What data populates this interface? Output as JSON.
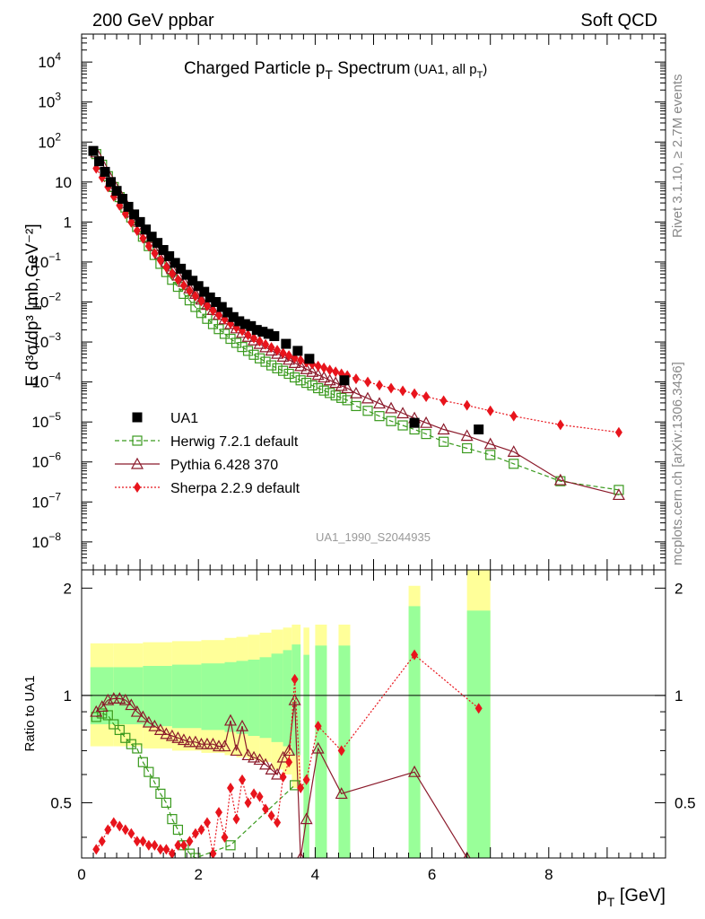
{
  "header": {
    "left": "200 GeV ppbar",
    "right": "Soft QCD"
  },
  "side_labels": {
    "rivet": "Rivet 3.1.10, ≥ 2.7M events",
    "mcplots": "mcplots.cern.ch [arXiv:1306.3436]"
  },
  "chart_data": [
    {
      "type": "scatter",
      "panel": "main",
      "title": "Charged Particle p_T Spectrum",
      "subtitle": "(UA1, all p_T)",
      "watermark": "UA1_1990_S2044935",
      "ylabel": "E d³σ/dp³ [mb,GeV⁻²]",
      "yscale": "log",
      "xlim": [
        0,
        10
      ],
      "ylim": [
        2e-09,
        50000
      ],
      "y_ticks": [
        "10^-8",
        "10^-7",
        "10^-6",
        "10^-5",
        "10^-4",
        "10^-3",
        "10^-2",
        "10^-1",
        "1",
        "10",
        "10^2",
        "10^3",
        "10^4"
      ],
      "legend_position": "lower-left",
      "series": [
        {
          "name": "UA1",
          "color": "#000000",
          "marker": "square-filled",
          "line": "none",
          "x": [
            0.2,
            0.3,
            0.4,
            0.5,
            0.6,
            0.7,
            0.8,
            0.9,
            1.0,
            1.1,
            1.2,
            1.3,
            1.4,
            1.5,
            1.6,
            1.7,
            1.8,
            1.9,
            2.0,
            2.1,
            2.2,
            2.3,
            2.4,
            2.5,
            2.6,
            2.7,
            2.8,
            2.9,
            3.0,
            3.1,
            3.2,
            3.3,
            3.5,
            3.7,
            3.9,
            4.5,
            5.7,
            6.8
          ],
          "y": [
            60,
            33,
            18,
            10,
            6,
            3.8,
            2.4,
            1.55,
            1.0,
            0.65,
            0.43,
            0.3,
            0.2,
            0.14,
            0.095,
            0.068,
            0.048,
            0.034,
            0.025,
            0.018,
            0.013,
            0.01,
            0.0075,
            0.0055,
            0.0042,
            0.0033,
            0.0028,
            0.0025,
            0.002,
            0.0018,
            0.0016,
            0.0014,
            0.0009,
            0.0006,
            0.00038,
            0.00011,
            9.5e-06,
            6.5e-06
          ]
        },
        {
          "name": "Herwig 7.2.1 default",
          "color": "#3a9a1e",
          "marker": "square-open",
          "line": "dashed",
          "x": [
            0.25,
            0.35,
            0.45,
            0.55,
            0.65,
            0.75,
            0.85,
            0.95,
            1.05,
            1.15,
            1.25,
            1.35,
            1.45,
            1.55,
            1.65,
            1.75,
            1.85,
            1.95,
            2.05,
            2.15,
            2.25,
            2.35,
            2.45,
            2.55,
            2.65,
            2.75,
            2.85,
            2.95,
            3.05,
            3.15,
            3.25,
            3.35,
            3.45,
            3.55,
            3.65,
            3.75,
            3.85,
            3.95,
            4.05,
            4.15,
            4.25,
            4.35,
            4.45,
            4.55,
            4.7,
            4.9,
            5.1,
            5.3,
            5.5,
            5.7,
            5.9,
            6.2,
            6.6,
            7.0,
            7.4,
            8.2,
            9.2
          ],
          "y": [
            50,
            27,
            14,
            7.5,
            4.2,
            2.3,
            1.3,
            0.75,
            0.43,
            0.25,
            0.15,
            0.09,
            0.056,
            0.036,
            0.024,
            0.016,
            0.011,
            0.0075,
            0.0053,
            0.0038,
            0.0028,
            0.0021,
            0.0016,
            0.0012,
            0.00095,
            0.00075,
            0.0006,
            0.00048,
            0.00039,
            0.00032,
            0.00026,
            0.00022,
            0.00019,
            0.00016,
            0.00013,
            0.00011,
            9.5e-05,
            8.2e-05,
            7e-05,
            6.1e-05,
            5.3e-05,
            4.6e-05,
            4e-05,
            3.5e-05,
            2.5e-05,
            1.9e-05,
            1.4e-05,
            1.05e-05,
            8.2e-06,
            6.5e-06,
            5e-06,
            3.2e-06,
            2.2e-06,
            1.5e-06,
            9e-07,
            3.3e-07,
            2e-07
          ]
        },
        {
          "name": "Pythia 6.428 370",
          "color": "#8b1a2b",
          "marker": "triangle-open",
          "line": "solid",
          "x": [
            0.25,
            0.35,
            0.45,
            0.55,
            0.65,
            0.75,
            0.85,
            0.95,
            1.05,
            1.15,
            1.25,
            1.35,
            1.45,
            1.55,
            1.65,
            1.75,
            1.85,
            1.95,
            2.05,
            2.15,
            2.25,
            2.35,
            2.45,
            2.55,
            2.65,
            2.75,
            2.85,
            2.95,
            3.05,
            3.15,
            3.25,
            3.35,
            3.45,
            3.55,
            3.65,
            3.75,
            3.85,
            3.95,
            4.05,
            4.15,
            4.25,
            4.35,
            4.45,
            4.55,
            4.7,
            4.9,
            5.1,
            5.3,
            5.5,
            5.7,
            5.9,
            6.2,
            6.6,
            7.0,
            7.4,
            8.2,
            9.2
          ],
          "y": [
            55,
            29,
            16,
            9.0,
            5.2,
            3.0,
            1.8,
            1.1,
            0.65,
            0.4,
            0.25,
            0.16,
            0.1,
            0.067,
            0.046,
            0.032,
            0.022,
            0.016,
            0.0115,
            0.0085,
            0.0063,
            0.0048,
            0.0037,
            0.0028,
            0.0022,
            0.0017,
            0.00135,
            0.0011,
            0.0009,
            0.00074,
            0.00061,
            0.00051,
            0.00043,
            0.00036,
            0.0003,
            0.00025,
            0.00021,
            0.00018,
            0.00015,
            0.00013,
            0.00011,
            9.5e-05,
            8e-05,
            7e-05,
            5.2e-05,
            3.9e-05,
            2.9e-05,
            2.2e-05,
            1.65e-05,
            1.25e-05,
            9.5e-06,
            6.5e-06,
            4.5e-06,
            2.8e-06,
            1.8e-06,
            3.5e-07,
            1.5e-07
          ]
        },
        {
          "name": "Sherpa 2.2.9 default",
          "color": "#e8141c",
          "marker": "diamond-filled",
          "line": "dotted",
          "x": [
            0.25,
            0.35,
            0.45,
            0.55,
            0.65,
            0.75,
            0.85,
            0.95,
            1.05,
            1.15,
            1.25,
            1.35,
            1.45,
            1.55,
            1.65,
            1.75,
            1.85,
            1.95,
            2.05,
            2.15,
            2.25,
            2.35,
            2.45,
            2.55,
            2.65,
            2.75,
            2.85,
            2.95,
            3.05,
            3.15,
            3.25,
            3.35,
            3.45,
            3.55,
            3.65,
            3.75,
            3.85,
            3.95,
            4.05,
            4.15,
            4.25,
            4.35,
            4.45,
            4.55,
            4.7,
            4.9,
            5.1,
            5.3,
            5.5,
            5.7,
            5.9,
            6.2,
            6.6,
            7.0,
            7.4,
            8.2,
            9.2
          ],
          "y": [
            22,
            13,
            7.5,
            4.4,
            2.6,
            1.6,
            0.98,
            0.61,
            0.39,
            0.25,
            0.165,
            0.11,
            0.074,
            0.051,
            0.036,
            0.026,
            0.019,
            0.014,
            0.0105,
            0.0079,
            0.0061,
            0.0047,
            0.0037,
            0.0029,
            0.0023,
            0.0019,
            0.0015,
            0.00125,
            0.00104,
            0.00087,
            0.00073,
            0.00062,
            0.00053,
            0.00046,
            0.0004,
            0.00035,
            0.00031,
            0.00028,
            0.00025,
            0.000225,
            0.0002,
            0.00018,
            0.00016,
            0.000145,
            0.00012,
            0.0001,
            8.3e-05,
            7e-05,
            6e-05,
            5.1e-05,
            4.3e-05,
            3.4e-05,
            2.6e-05,
            1.9e-05,
            1.4e-05,
            8.5e-06,
            5.5e-06
          ]
        }
      ]
    },
    {
      "type": "line",
      "panel": "ratio",
      "ylabel": "Ratio to UA1",
      "xlabel": "p_T [GeV]",
      "xlim": [
        0,
        10
      ],
      "ylim": [
        0.35,
        2.25
      ],
      "x_ticks": [
        "0",
        "2",
        "4",
        "6",
        "8"
      ],
      "y_ticks": [
        "0.5",
        "1",
        "2"
      ],
      "reference_line": 1,
      "uncertainty_bands": [
        {
          "x0": 0.15,
          "x1": 0.55,
          "yellow": [
            0.72,
            1.4
          ],
          "green": [
            0.83,
            1.2
          ]
        },
        {
          "x0": 0.55,
          "x1": 1.05,
          "yellow": [
            0.72,
            1.4
          ],
          "green": [
            0.83,
            1.2
          ]
        },
        {
          "x0": 1.05,
          "x1": 1.55,
          "yellow": [
            0.71,
            1.41
          ],
          "green": [
            0.82,
            1.21
          ]
        },
        {
          "x0": 1.55,
          "x1": 2.05,
          "yellow": [
            0.7,
            1.42
          ],
          "green": [
            0.81,
            1.22
          ]
        },
        {
          "x0": 2.05,
          "x1": 2.45,
          "yellow": [
            0.69,
            1.43
          ],
          "green": [
            0.8,
            1.23
          ]
        },
        {
          "x0": 2.45,
          "x1": 2.65,
          "yellow": [
            0.68,
            1.45
          ],
          "green": [
            0.79,
            1.24
          ]
        },
        {
          "x0": 2.65,
          "x1": 2.85,
          "yellow": [
            0.67,
            1.46
          ],
          "green": [
            0.78,
            1.25
          ]
        },
        {
          "x0": 2.85,
          "x1": 3.05,
          "yellow": [
            0.66,
            1.48
          ],
          "green": [
            0.77,
            1.26
          ]
        },
        {
          "x0": 3.05,
          "x1": 3.25,
          "yellow": [
            0.65,
            1.5
          ],
          "green": [
            0.76,
            1.28
          ]
        },
        {
          "x0": 3.25,
          "x1": 3.45,
          "yellow": [
            0.62,
            1.53
          ],
          "green": [
            0.74,
            1.31
          ]
        },
        {
          "x0": 3.45,
          "x1": 3.6,
          "yellow": [
            0.6,
            1.55
          ],
          "green": [
            0.72,
            1.34
          ]
        },
        {
          "x0": 3.6,
          "x1": 3.75,
          "yellow": [
            0.55,
            1.58
          ],
          "green": [
            0.68,
            1.39
          ]
        },
        {
          "x0": 3.8,
          "x1": 3.9,
          "yellow": [
            0.35,
            1.55
          ],
          "green": [
            0.35,
            1.3
          ]
        },
        {
          "x0": 4.0,
          "x1": 4.2,
          "yellow": [
            0.35,
            1.58
          ],
          "green": [
            0.35,
            1.38
          ]
        },
        {
          "x0": 4.4,
          "x1": 4.6,
          "yellow": [
            0.35,
            1.58
          ],
          "green": [
            0.35,
            1.38
          ]
        },
        {
          "x0": 5.6,
          "x1": 5.8,
          "yellow": [
            0.35,
            2.03
          ],
          "green": [
            0.35,
            1.78
          ]
        },
        {
          "x0": 6.6,
          "x1": 7.0,
          "yellow": [
            0.35,
            2.25
          ],
          "green": [
            0.35,
            1.73
          ]
        }
      ],
      "series": [
        {
          "name": "Herwig 7.2.1 default",
          "color": "#3a9a1e",
          "marker": "square-open",
          "line": "dashed",
          "x": [
            0.25,
            0.35,
            0.45,
            0.55,
            0.65,
            0.75,
            0.85,
            0.95,
            1.05,
            1.15,
            1.25,
            1.35,
            1.45,
            1.55,
            1.65,
            1.75,
            1.85,
            1.95,
            2.55,
            3.65
          ],
          "y": [
            0.87,
            0.89,
            0.88,
            0.83,
            0.8,
            0.76,
            0.73,
            0.71,
            0.65,
            0.61,
            0.57,
            0.53,
            0.5,
            0.45,
            0.42,
            0.38,
            0.36,
            0.35,
            0.38,
            0.56
          ]
        },
        {
          "name": "Pythia 6.428 370",
          "color": "#8b1a2b",
          "marker": "triangle-open",
          "line": "solid",
          "x": [
            0.25,
            0.35,
            0.45,
            0.55,
            0.65,
            0.75,
            0.85,
            0.95,
            1.05,
            1.15,
            1.25,
            1.35,
            1.45,
            1.55,
            1.65,
            1.75,
            1.85,
            1.95,
            2.05,
            2.15,
            2.25,
            2.35,
            2.45,
            2.55,
            2.65,
            2.75,
            2.85,
            2.95,
            3.05,
            3.15,
            3.25,
            3.35,
            3.45,
            3.55,
            3.65,
            3.75,
            3.85,
            4.05,
            4.45,
            5.7,
            6.6
          ],
          "y": [
            0.9,
            0.93,
            0.97,
            0.98,
            0.98,
            0.97,
            0.94,
            0.9,
            0.87,
            0.84,
            0.82,
            0.8,
            0.78,
            0.77,
            0.76,
            0.75,
            0.74,
            0.74,
            0.73,
            0.73,
            0.73,
            0.72,
            0.72,
            0.85,
            0.7,
            0.82,
            0.68,
            0.67,
            0.66,
            0.64,
            0.62,
            0.6,
            0.67,
            0.7,
            0.97,
            0.35,
            0.45,
            0.71,
            0.53,
            0.61,
            0.35
          ]
        },
        {
          "name": "Sherpa 2.2.9 default",
          "color": "#e8141c",
          "marker": "diamond-filled",
          "line": "dotted",
          "x": [
            0.25,
            0.35,
            0.45,
            0.55,
            0.65,
            0.75,
            0.85,
            0.95,
            1.05,
            1.15,
            1.25,
            1.35,
            1.45,
            1.55,
            1.65,
            1.75,
            1.85,
            1.95,
            2.05,
            2.15,
            2.25,
            2.35,
            2.45,
            2.55,
            2.65,
            2.75,
            2.85,
            2.95,
            3.05,
            3.15,
            3.25,
            3.35,
            3.45,
            3.55,
            3.65,
            3.75,
            3.85,
            4.05,
            4.45,
            5.7,
            6.8
          ],
          "y": [
            0.37,
            0.39,
            0.42,
            0.44,
            0.43,
            0.42,
            0.41,
            0.39,
            0.39,
            0.38,
            0.38,
            0.37,
            0.37,
            0.36,
            0.38,
            0.38,
            0.39,
            0.41,
            0.42,
            0.44,
            0.36,
            0.47,
            0.4,
            0.55,
            0.45,
            0.58,
            0.5,
            0.53,
            0.52,
            0.48,
            0.46,
            0.44,
            0.59,
            0.65,
            1.11,
            0.55,
            0.58,
            0.82,
            0.7,
            1.3,
            0.92
          ]
        }
      ]
    }
  ]
}
